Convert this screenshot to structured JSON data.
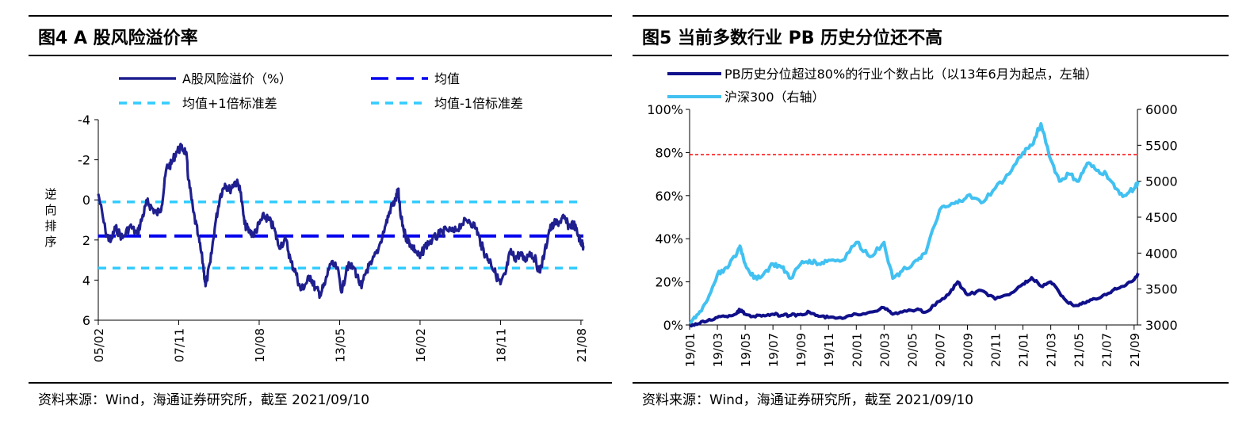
{
  "page": {
    "background": "#ffffff"
  },
  "charts": {
    "left": {
      "title": "图4 A 股风险溢价率",
      "source": "资料来源：Wind，海通证券研究所，截至 2021/09/10"
    },
    "right": {
      "title": "图5 当前多数行业 PB 历史分位还不高",
      "source": "资料来源：Wind，海通证券研究所，截至 2021/09/10"
    }
  },
  "chart_data": [
    {
      "type": "line",
      "title": "图4 A 股风险溢价率",
      "ylabel": "逆向排序",
      "xlabel": "",
      "y_axis_inverted": true,
      "ylim": [
        -4,
        6
      ],
      "y_ticks": [
        -4,
        -2,
        0,
        2,
        4,
        6
      ],
      "x_range": [
        "2005-02",
        "2021-09"
      ],
      "x_ticks": [
        "05/02",
        "07/11",
        "10/08",
        "13/05",
        "16/02",
        "18/11",
        "21/08"
      ],
      "grid": false,
      "legend_position": "top",
      "series": [
        {
          "name": "A股风险溢价（%）",
          "color": "#1f1f8f",
          "style": "solid",
          "points": [
            [
              "2005-02",
              -0.3
            ],
            [
              "2005-05",
              1.6
            ],
            [
              "2005-07",
              2.1
            ],
            [
              "2005-09",
              1.4
            ],
            [
              "2005-12",
              1.9
            ],
            [
              "2006-03",
              1.3
            ],
            [
              "2006-06",
              1.7
            ],
            [
              "2006-08",
              0.9
            ],
            [
              "2006-10",
              0.1
            ],
            [
              "2006-12",
              0.4
            ],
            [
              "2007-02",
              0.7
            ],
            [
              "2007-04",
              0.3
            ],
            [
              "2007-06",
              -1.6
            ],
            [
              "2007-08",
              -1.8
            ],
            [
              "2007-10",
              -2.4
            ],
            [
              "2007-12",
              -2.6
            ],
            [
              "2008-02",
              -2.4
            ],
            [
              "2008-03",
              -1.0
            ],
            [
              "2008-05",
              0.6
            ],
            [
              "2008-07",
              1.8
            ],
            [
              "2008-09",
              3.2
            ],
            [
              "2008-10",
              4.3
            ],
            [
              "2008-12",
              3.1
            ],
            [
              "2009-02",
              1.2
            ],
            [
              "2009-04",
              -0.2
            ],
            [
              "2009-06",
              -0.8
            ],
            [
              "2009-08",
              -0.5
            ],
            [
              "2009-10",
              -0.9
            ],
            [
              "2009-12",
              -0.7
            ],
            [
              "2010-02",
              1.2
            ],
            [
              "2010-04",
              1.6
            ],
            [
              "2010-06",
              1.7
            ],
            [
              "2010-08",
              1.2
            ],
            [
              "2010-10",
              0.8
            ],
            [
              "2010-12",
              1.0
            ],
            [
              "2011-02",
              1.4
            ],
            [
              "2011-04",
              2.3
            ],
            [
              "2011-07",
              2.0
            ],
            [
              "2011-09",
              3.1
            ],
            [
              "2011-11",
              3.6
            ],
            [
              "2012-01",
              4.5
            ],
            [
              "2012-03",
              4.2
            ],
            [
              "2012-05",
              3.8
            ],
            [
              "2012-07",
              4.4
            ],
            [
              "2012-09",
              4.7
            ],
            [
              "2012-11",
              4.2
            ],
            [
              "2013-01",
              3.2
            ],
            [
              "2013-04",
              3.4
            ],
            [
              "2013-06",
              4.6
            ],
            [
              "2013-08",
              3.3
            ],
            [
              "2013-11",
              3.4
            ],
            [
              "2014-02",
              4.4
            ],
            [
              "2014-04",
              3.5
            ],
            [
              "2014-06",
              3.2
            ],
            [
              "2014-09",
              2.4
            ],
            [
              "2014-12",
              1.2
            ],
            [
              "2015-02",
              0.4
            ],
            [
              "2015-04",
              0.0
            ],
            [
              "2015-05",
              -0.5
            ],
            [
              "2015-06",
              0.8
            ],
            [
              "2015-08",
              1.8
            ],
            [
              "2015-10",
              2.2
            ],
            [
              "2015-12",
              2.5
            ],
            [
              "2016-02",
              2.9
            ],
            [
              "2016-04",
              2.3
            ],
            [
              "2016-07",
              2.0
            ],
            [
              "2016-10",
              1.7
            ],
            [
              "2017-01",
              1.5
            ],
            [
              "2017-04",
              1.6
            ],
            [
              "2017-07",
              1.2
            ],
            [
              "2017-10",
              1.0
            ],
            [
              "2018-01",
              1.4
            ],
            [
              "2018-03",
              2.2
            ],
            [
              "2018-05",
              2.8
            ],
            [
              "2018-07",
              3.1
            ],
            [
              "2018-09",
              3.7
            ],
            [
              "2018-11",
              4.2
            ],
            [
              "2019-01",
              3.7
            ],
            [
              "2019-03",
              2.6
            ],
            [
              "2019-05",
              2.9
            ],
            [
              "2019-07",
              2.7
            ],
            [
              "2019-09",
              3.0
            ],
            [
              "2019-11",
              2.6
            ],
            [
              "2020-01",
              2.9
            ],
            [
              "2020-03",
              3.6
            ],
            [
              "2020-05",
              2.7
            ],
            [
              "2020-07",
              1.5
            ],
            [
              "2020-09",
              1.2
            ],
            [
              "2020-11",
              1.1
            ],
            [
              "2021-01",
              0.9
            ],
            [
              "2021-03",
              1.3
            ],
            [
              "2021-05",
              1.2
            ],
            [
              "2021-07",
              1.8
            ],
            [
              "2021-08",
              2.1
            ],
            [
              "2021-09",
              2.3
            ]
          ]
        },
        {
          "name": "均值",
          "color": "#0000ee",
          "style": "dashed",
          "constant": 1.8
        },
        {
          "name": "均值+1倍标准差",
          "color": "#33ccff",
          "style": "dashed",
          "constant": 0.1
        },
        {
          "name": "均值-1倍标准差",
          "color": "#33ccff",
          "style": "dashed",
          "constant": 3.4
        }
      ]
    },
    {
      "type": "line",
      "title": "图5 当前多数行业 PB 历史分位还不高",
      "xlabel": "",
      "ylim": [
        0,
        100
      ],
      "y_ticks": [
        "0%",
        "20%",
        "40%",
        "60%",
        "80%",
        "100%"
      ],
      "y2lim": [
        3000,
        6000
      ],
      "y2_ticks": [
        3000,
        3500,
        4000,
        4500,
        5000,
        5500,
        6000
      ],
      "x_range": [
        "2019-01",
        "2021-09"
      ],
      "x_ticks": [
        "19/01",
        "19/03",
        "19/05",
        "19/07",
        "19/09",
        "19/11",
        "20/01",
        "20/03",
        "20/05",
        "20/07",
        "20/09",
        "20/11",
        "21/01",
        "21/03",
        "21/05",
        "21/07",
        "21/09"
      ],
      "grid": false,
      "legend_position": "top",
      "reference_line": {
        "value": 79,
        "axis": "left",
        "color": "#ff0000",
        "style": "dashed"
      },
      "series": [
        {
          "name": "PB历史分位超过80%的行业个数占比（以13年6月为起点，左轴）",
          "axis": "left",
          "color": "#10108a",
          "points": [
            [
              "2019-01-02",
              0
            ],
            [
              "2019-01-20",
              0.5
            ],
            [
              "2019-02-10",
              2
            ],
            [
              "2019-03-01",
              3.5
            ],
            [
              "2019-03-20",
              4
            ],
            [
              "2019-04-10",
              5
            ],
            [
              "2019-04-20",
              7
            ],
            [
              "2019-05-01",
              5
            ],
            [
              "2019-05-20",
              4
            ],
            [
              "2019-06-10",
              4.5
            ],
            [
              "2019-07-01",
              5
            ],
            [
              "2019-07-20",
              4.5
            ],
            [
              "2019-08-10",
              4.5
            ],
            [
              "2019-09-01",
              5
            ],
            [
              "2019-09-20",
              6
            ],
            [
              "2019-10-10",
              4
            ],
            [
              "2019-11-01",
              3.5
            ],
            [
              "2019-12-01",
              3
            ],
            [
              "2020-01-01",
              5
            ],
            [
              "2020-02-01",
              6
            ],
            [
              "2020-03-01",
              8
            ],
            [
              "2020-03-20",
              5
            ],
            [
              "2020-04-10",
              6
            ],
            [
              "2020-05-10",
              7
            ],
            [
              "2020-06-01",
              6
            ],
            [
              "2020-07-01",
              11
            ],
            [
              "2020-07-20",
              14
            ],
            [
              "2020-08-10",
              20
            ],
            [
              "2020-09-01",
              14
            ],
            [
              "2020-10-01",
              16
            ],
            [
              "2020-11-01",
              12
            ],
            [
              "2020-12-01",
              14
            ],
            [
              "2021-01-01",
              19
            ],
            [
              "2021-01-20",
              22
            ],
            [
              "2021-02-10",
              18
            ],
            [
              "2021-03-01",
              20
            ],
            [
              "2021-03-20",
              15
            ],
            [
              "2021-04-10",
              10
            ],
            [
              "2021-05-01",
              9
            ],
            [
              "2021-05-20",
              11
            ],
            [
              "2021-06-10",
              12
            ],
            [
              "2021-07-01",
              14
            ],
            [
              "2021-07-20",
              17
            ],
            [
              "2021-08-10",
              18
            ],
            [
              "2021-09-01",
              21
            ],
            [
              "2021-09-10",
              24
            ]
          ]
        },
        {
          "name": "沪深300（右轴）",
          "axis": "right",
          "color": "#41c1f1",
          "points": [
            [
              "2019-01-02",
              3020
            ],
            [
              "2019-01-20",
              3150
            ],
            [
              "2019-02-10",
              3350
            ],
            [
              "2019-03-01",
              3700
            ],
            [
              "2019-03-20",
              3800
            ],
            [
              "2019-04-10",
              3950
            ],
            [
              "2019-04-20",
              4100
            ],
            [
              "2019-05-01",
              3850
            ],
            [
              "2019-05-20",
              3650
            ],
            [
              "2019-06-10",
              3700
            ],
            [
              "2019-07-01",
              3850
            ],
            [
              "2019-07-20",
              3800
            ],
            [
              "2019-08-10",
              3650
            ],
            [
              "2019-09-01",
              3850
            ],
            [
              "2019-09-20",
              3900
            ],
            [
              "2019-10-10",
              3850
            ],
            [
              "2019-11-01",
              3900
            ],
            [
              "2019-12-01",
              3900
            ],
            [
              "2020-01-01",
              4150
            ],
            [
              "2020-02-01",
              3950
            ],
            [
              "2020-03-01",
              4150
            ],
            [
              "2020-03-20",
              3650
            ],
            [
              "2020-04-10",
              3750
            ],
            [
              "2020-05-10",
              3900
            ],
            [
              "2020-06-01",
              4000
            ],
            [
              "2020-07-01",
              4600
            ],
            [
              "2020-07-20",
              4650
            ],
            [
              "2020-08-10",
              4700
            ],
            [
              "2020-09-01",
              4800
            ],
            [
              "2020-10-01",
              4700
            ],
            [
              "2020-11-01",
              4900
            ],
            [
              "2020-12-01",
              5100
            ],
            [
              "2021-01-01",
              5400
            ],
            [
              "2021-01-20",
              5500
            ],
            [
              "2021-02-10",
              5800
            ],
            [
              "2021-03-01",
              5300
            ],
            [
              "2021-03-20",
              5000
            ],
            [
              "2021-04-10",
              5100
            ],
            [
              "2021-05-01",
              5000
            ],
            [
              "2021-05-20",
              5250
            ],
            [
              "2021-06-10",
              5150
            ],
            [
              "2021-07-01",
              5100
            ],
            [
              "2021-07-20",
              4900
            ],
            [
              "2021-08-10",
              4800
            ],
            [
              "2021-09-01",
              4900
            ],
            [
              "2021-09-10",
              5000
            ]
          ]
        }
      ]
    }
  ]
}
